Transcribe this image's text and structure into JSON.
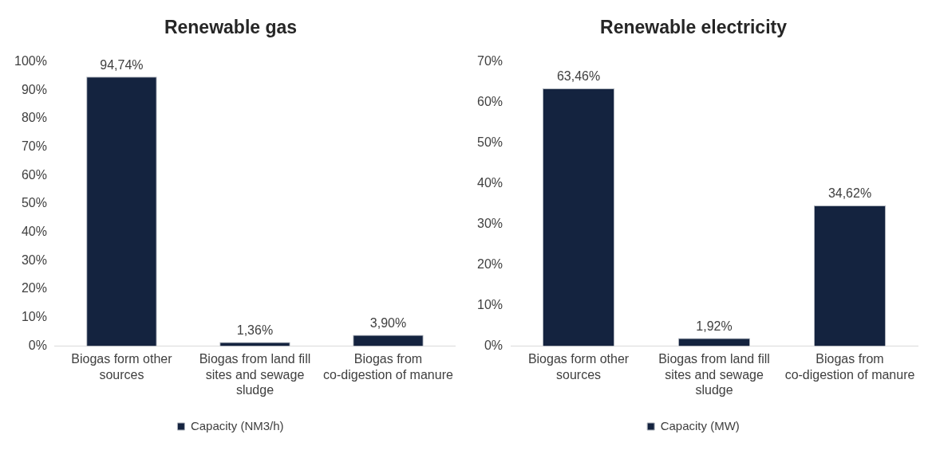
{
  "chart_data": [
    {
      "type": "bar",
      "title": "Renewable gas",
      "categories": [
        "Biogas form other sources",
        "Biogas from land fill sites and sewage sludge",
        "Biogas from co-digestion of manure"
      ],
      "series": [
        {
          "name": "Capacity (NM3/h)",
          "color": "#14233f",
          "values": [
            94.74,
            1.36,
            3.9
          ],
          "value_labels": [
            "94,74%",
            "1,36%",
            "3,90%"
          ]
        }
      ],
      "ylim": [
        0,
        100
      ],
      "yticks": [
        {
          "value": 0,
          "label": "0%"
        },
        {
          "value": 10,
          "label": "10%"
        },
        {
          "value": 20,
          "label": "20%"
        },
        {
          "value": 30,
          "label": "30%"
        },
        {
          "value": 40,
          "label": "40%"
        },
        {
          "value": 50,
          "label": "50%"
        },
        {
          "value": 60,
          "label": "60%"
        },
        {
          "value": 70,
          "label": "70%"
        },
        {
          "value": 80,
          "label": "80%"
        },
        {
          "value": 90,
          "label": "90%"
        },
        {
          "value": 100,
          "label": "100%"
        }
      ],
      "legend": "bottom",
      "grid": false
    },
    {
      "type": "bar",
      "title": "Renewable electricity",
      "categories": [
        "Biogas form other sources",
        "Biogas from land fill sites and sewage sludge",
        "Biogas from co-digestion of manure"
      ],
      "series": [
        {
          "name": "Capacity (MW)",
          "color": "#14233f",
          "values": [
            63.46,
            1.92,
            34.62
          ],
          "value_labels": [
            "63,46%",
            "1,92%",
            "34,62%"
          ]
        }
      ],
      "ylim": [
        0,
        70
      ],
      "yticks": [
        {
          "value": 0,
          "label": "0%"
        },
        {
          "value": 10,
          "label": "10%"
        },
        {
          "value": 20,
          "label": "20%"
        },
        {
          "value": 30,
          "label": "30%"
        },
        {
          "value": 40,
          "label": "40%"
        },
        {
          "value": 50,
          "label": "50%"
        },
        {
          "value": 60,
          "label": "60%"
        },
        {
          "value": 70,
          "label": "70%"
        }
      ],
      "legend": "bottom",
      "grid": false
    }
  ]
}
